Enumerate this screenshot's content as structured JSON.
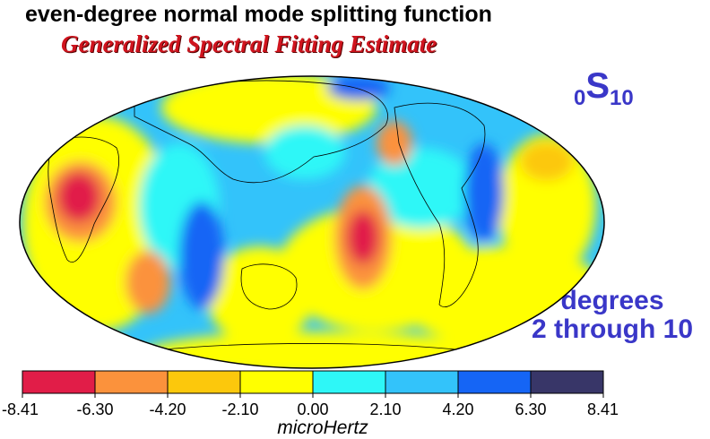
{
  "title": "even-degree normal mode splitting function",
  "subtitle": "Generalized Spectral Fitting Estimate",
  "mode_label": {
    "base": "S",
    "pre_subscript": "0",
    "subscript": "10"
  },
  "degree_label": {
    "line1": "degrees",
    "line2": "2 through 10"
  },
  "colorbar": {
    "unit": "microHertz",
    "ticks": [
      "-8.41",
      "-6.30",
      "-4.20",
      "-2.10",
      "0.00",
      "2.10",
      "4.20",
      "6.30",
      "8.41"
    ],
    "colors": [
      "#e11d48",
      "#fb923c",
      "#fcc80c",
      "#ffff00",
      "#2ef7f7",
      "#33c3fa",
      "#1565f5",
      "#383668"
    ]
  },
  "map": {
    "projection": "mollweide",
    "central_meridian_deg": 140
  }
}
